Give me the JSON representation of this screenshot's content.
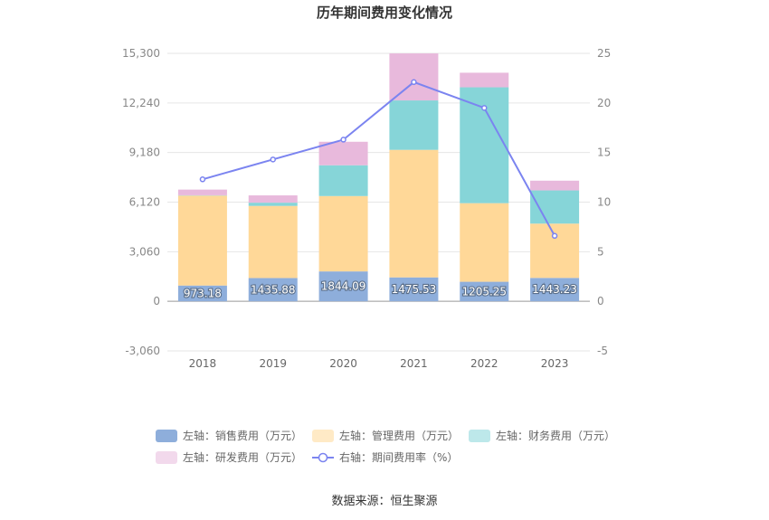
{
  "chart_data": {
    "type": "bar",
    "title": "历年期间费用变化情况",
    "categories": [
      "2018",
      "2019",
      "2020",
      "2021",
      "2022",
      "2023"
    ],
    "left_axis": {
      "ticks": [
        "15,300",
        "12,240",
        "9,180",
        "6,120",
        "3,060",
        "0",
        "-3,060"
      ],
      "ylim": [
        -3060,
        15300
      ]
    },
    "right_axis": {
      "ticks": [
        "25",
        "20",
        "15",
        "10",
        "5",
        "0",
        "-5"
      ],
      "ylim": [
        -5,
        25
      ]
    },
    "series": [
      {
        "name": "左轴：销售费用（万元）",
        "type": "bar",
        "stack": true,
        "color": "#8eaedb",
        "values": [
          973.18,
          1435.88,
          1844.09,
          1475.53,
          1205.25,
          1443.23
        ]
      },
      {
        "name": "左轴：管理费用（万元）",
        "type": "bar",
        "stack": true,
        "color": "#ffd898",
        "values": [
          5550,
          4450,
          4650,
          7870,
          4850,
          3350
        ]
      },
      {
        "name": "左轴：财务费用（万元）",
        "type": "bar",
        "stack": true,
        "color": "#86d5d8",
        "values": [
          20,
          200,
          1900,
          3050,
          7150,
          2050
        ]
      },
      {
        "name": "左轴：研发费用（万元）",
        "type": "bar",
        "stack": true,
        "color": "#e8b9dc",
        "values": [
          350,
          450,
          1450,
          2900,
          900,
          600
        ]
      },
      {
        "name": "右轴：期间费用率（%）",
        "type": "line",
        "axis": "right",
        "color": "#7b84f0",
        "values": [
          12.3,
          14.3,
          16.3,
          22.1,
          19.5,
          6.6
        ]
      }
    ],
    "bar_labels": [
      "973.18",
      "1435.88",
      "1844.09",
      "1475.53",
      "1205.25",
      "1443.23"
    ],
    "legend_position": "bottom",
    "grid": true
  },
  "source": "数据来源：恒生聚源"
}
